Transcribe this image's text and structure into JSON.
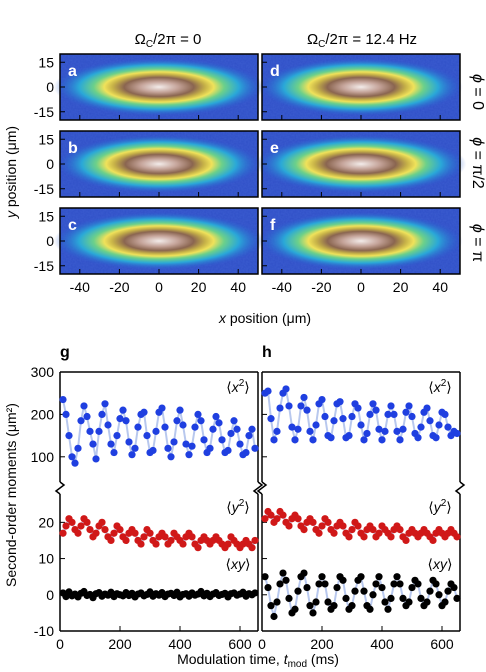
{
  "chart_data": [
    {
      "type": "heatmap",
      "columns": [
        {
          "title": "ΩC/2π = 0",
          "title_main": "Ω",
          "title_sub": "C",
          "title_rest": "/2π = 0"
        },
        {
          "title": "ΩC/2π = 12.4 Hz",
          "title_main": "Ω",
          "title_sub": "C",
          "title_rest": "/2π = 12.4 Hz"
        }
      ],
      "rows": [
        {
          "label": "ϕ = 0",
          "label_sym": "ϕ",
          "label_rest": " = 0"
        },
        {
          "label": "ϕ = π/2",
          "label_sym": "ϕ",
          "label_rest": " = π/2"
        },
        {
          "label": "ϕ = π",
          "label_sym": "ϕ",
          "label_rest": " = π"
        }
      ],
      "panel_letters": [
        "a",
        "b",
        "c",
        "d",
        "e",
        "f"
      ],
      "xlabel_var": "x",
      "xlabel_rest": " position (μm)",
      "ylabel_var": "y",
      "ylabel_rest": " position (μm)",
      "xticks": [
        -40,
        -20,
        0,
        20,
        40
      ],
      "yticks": [
        15,
        0,
        -15
      ],
      "xlim": [
        -50,
        50
      ],
      "ylim": [
        -20,
        20
      ],
      "cloud_half_width_um": [
        28,
        27,
        28,
        27,
        28,
        27
      ],
      "cloud_half_height_um": [
        8,
        8,
        8,
        8,
        8,
        8
      ]
    },
    {
      "type": "scatter",
      "panels": [
        {
          "letter": "g",
          "lines": true
        },
        {
          "letter": "h",
          "lines": true
        }
      ],
      "ylabel": "Second-order moments (μm²)",
      "xlabel_main": "Modulation time, ",
      "xlabel_var": "t",
      "xlabel_sub": "mod",
      "xlabel_unit": " (ms)",
      "xticks": [
        0,
        200,
        400,
        600
      ],
      "xlim": [
        0,
        660
      ],
      "upper_ylim": [
        50,
        300
      ],
      "upper_yticks": [
        300,
        200,
        100
      ],
      "lower_ylim": [
        -10,
        27
      ],
      "lower_yticks": [
        20,
        10,
        0,
        -10
      ],
      "series_labels": {
        "x2": {
          "text": "⟨x²⟩",
          "open": "⟨",
          "var": "x",
          "sup": "2",
          "close": "⟩"
        },
        "y2": {
          "text": "⟨y²⟩",
          "open": "⟨",
          "var": "y",
          "sup": "2",
          "close": "⟩"
        },
        "xy": {
          "text": "⟨xy⟩",
          "open": "⟨",
          "var": "xy",
          "sup": "",
          "close": "⟩"
        }
      },
      "colors": {
        "x2": "#1f3fe0",
        "y2": "#d01818",
        "xy": "#000000",
        "fit": "#b8c8ee"
      },
      "series": [
        {
          "name": "x2",
          "panel": "g",
          "x": [
            10,
            20,
            30,
            40,
            50,
            60,
            70,
            80,
            90,
            100,
            110,
            120,
            130,
            140,
            150,
            160,
            170,
            180,
            190,
            200,
            210,
            220,
            230,
            240,
            250,
            260,
            270,
            280,
            290,
            300,
            310,
            320,
            330,
            340,
            350,
            360,
            370,
            380,
            390,
            400,
            410,
            420,
            430,
            440,
            450,
            460,
            470,
            480,
            490,
            500,
            510,
            520,
            530,
            540,
            550,
            560,
            570,
            580,
            590,
            600,
            610,
            620,
            630,
            640,
            650
          ],
          "y": [
            235,
            200,
            150,
            100,
            85,
            120,
            185,
            220,
            195,
            160,
            130,
            95,
            160,
            200,
            225,
            175,
            130,
            110,
            150,
            190,
            210,
            185,
            135,
            105,
            120,
            170,
            200,
            205,
            150,
            110,
            115,
            160,
            205,
            215,
            170,
            120,
            100,
            135,
            185,
            210,
            175,
            130,
            105,
            125,
            170,
            200,
            185,
            140,
            110,
            120,
            165,
            195,
            180,
            140,
            110,
            115,
            155,
            185,
            165,
            130,
            105,
            110,
            150,
            165,
            120
          ]
        },
        {
          "name": "y2",
          "panel": "g",
          "x": [
            10,
            20,
            30,
            40,
            50,
            60,
            70,
            80,
            90,
            100,
            110,
            120,
            130,
            140,
            150,
            160,
            170,
            180,
            190,
            200,
            210,
            220,
            230,
            240,
            250,
            260,
            270,
            280,
            290,
            300,
            310,
            320,
            330,
            340,
            350,
            360,
            370,
            380,
            390,
            400,
            410,
            420,
            430,
            440,
            450,
            460,
            470,
            480,
            490,
            500,
            510,
            520,
            530,
            540,
            550,
            560,
            570,
            580,
            590,
            600,
            610,
            620,
            630,
            640,
            650
          ],
          "y": [
            17,
            19,
            21,
            20,
            18,
            17,
            19,
            21,
            20,
            18,
            16,
            17,
            19,
            20,
            18,
            16,
            15,
            17,
            19,
            18,
            16,
            15,
            17,
            18,
            17,
            15,
            14,
            16,
            18,
            17,
            15,
            14,
            16,
            17,
            16,
            14,
            15,
            17,
            16,
            15,
            14,
            16,
            17,
            16,
            14,
            13,
            15,
            16,
            15,
            14,
            15,
            16,
            15,
            14,
            13,
            14,
            16,
            15,
            14,
            13,
            14,
            15,
            14,
            13,
            15
          ]
        },
        {
          "name": "xy",
          "panel": "g",
          "x": [
            10,
            20,
            30,
            40,
            50,
            60,
            70,
            80,
            90,
            100,
            110,
            120,
            130,
            140,
            150,
            160,
            170,
            180,
            190,
            200,
            210,
            220,
            230,
            240,
            250,
            260,
            270,
            280,
            290,
            300,
            310,
            320,
            330,
            340,
            350,
            360,
            370,
            380,
            390,
            400,
            410,
            420,
            430,
            440,
            450,
            460,
            470,
            480,
            490,
            500,
            510,
            520,
            530,
            540,
            550,
            560,
            570,
            580,
            590,
            600,
            610,
            620,
            630,
            640,
            650
          ],
          "y": [
            0.5,
            -0.5,
            0.8,
            -0.3,
            0.2,
            -0.6,
            0.4,
            0.9,
            -0.2,
            0.1,
            -0.8,
            0.3,
            0.6,
            -0.4,
            0.2,
            -0.1,
            0.7,
            -0.5,
            0.3,
            0.0,
            -0.3,
            0.6,
            -0.2,
            0.4,
            -0.6,
            0.2,
            0.5,
            -0.3,
            0.1,
            0.8,
            -0.4,
            0.3,
            -0.1,
            0.6,
            -0.5,
            0.2,
            0.4,
            -0.2,
            0.7,
            -0.6,
            0.1,
            0.3,
            -0.4,
            0.5,
            -0.1,
            0.2,
            0.9,
            -0.3,
            0.4,
            -0.5,
            0.2,
            0.6,
            -0.2,
            0.1,
            0.4,
            -0.6,
            0.3,
            0.5,
            -0.1,
            0.2,
            0.7,
            -0.4,
            0.3,
            0.0,
            0.5
          ]
        },
        {
          "name": "x2",
          "panel": "h",
          "x": [
            10,
            20,
            30,
            40,
            50,
            60,
            70,
            80,
            90,
            100,
            110,
            120,
            130,
            140,
            150,
            160,
            170,
            180,
            190,
            200,
            210,
            220,
            230,
            240,
            250,
            260,
            270,
            280,
            290,
            300,
            310,
            320,
            330,
            340,
            350,
            360,
            370,
            380,
            390,
            400,
            410,
            420,
            430,
            440,
            450,
            460,
            470,
            480,
            490,
            500,
            510,
            520,
            530,
            540,
            550,
            560,
            570,
            580,
            590,
            600,
            610,
            620,
            630,
            640,
            650
          ],
          "y": [
            250,
            255,
            190,
            140,
            160,
            215,
            250,
            260,
            220,
            170,
            140,
            165,
            220,
            240,
            210,
            160,
            140,
            175,
            225,
            235,
            195,
            150,
            145,
            185,
            225,
            230,
            190,
            145,
            150,
            195,
            225,
            215,
            175,
            140,
            155,
            200,
            225,
            210,
            165,
            140,
            160,
            200,
            220,
            200,
            160,
            140,
            165,
            205,
            220,
            195,
            155,
            145,
            170,
            205,
            215,
            185,
            150,
            145,
            175,
            205,
            200,
            170,
            150,
            160,
            155
          ]
        },
        {
          "name": "y2",
          "panel": "h",
          "x": [
            10,
            20,
            30,
            40,
            50,
            60,
            70,
            80,
            90,
            100,
            110,
            120,
            130,
            140,
            150,
            160,
            170,
            180,
            190,
            200,
            210,
            220,
            230,
            240,
            250,
            260,
            270,
            280,
            290,
            300,
            310,
            320,
            330,
            340,
            350,
            360,
            370,
            380,
            390,
            400,
            410,
            420,
            430,
            440,
            450,
            460,
            470,
            480,
            490,
            500,
            510,
            520,
            530,
            540,
            550,
            560,
            570,
            580,
            590,
            600,
            610,
            620,
            630,
            640,
            650
          ],
          "y": [
            21,
            23,
            22,
            20,
            21,
            23,
            22,
            20,
            19,
            21,
            22,
            21,
            19,
            18,
            20,
            21,
            20,
            18,
            17,
            19,
            21,
            20,
            18,
            17,
            19,
            20,
            19,
            17,
            16,
            18,
            20,
            19,
            17,
            16,
            18,
            19,
            18,
            16,
            17,
            19,
            18,
            17,
            16,
            18,
            19,
            18,
            16,
            15,
            17,
            18,
            17,
            16,
            17,
            18,
            17,
            16,
            15,
            17,
            18,
            17,
            16,
            17,
            18,
            17,
            16
          ]
        },
        {
          "name": "xy",
          "panel": "h",
          "x": [
            10,
            20,
            30,
            40,
            50,
            60,
            70,
            80,
            90,
            100,
            110,
            120,
            130,
            140,
            150,
            160,
            170,
            180,
            190,
            200,
            210,
            220,
            230,
            240,
            250,
            260,
            270,
            280,
            290,
            300,
            310,
            320,
            330,
            340,
            350,
            360,
            370,
            380,
            390,
            400,
            410,
            420,
            430,
            440,
            450,
            460,
            470,
            480,
            490,
            500,
            510,
            520,
            530,
            540,
            550,
            560,
            570,
            580,
            590,
            600,
            610,
            620,
            630,
            640,
            650
          ],
          "y": [
            5,
            2,
            -3,
            -6,
            -2,
            3,
            6,
            4,
            -1,
            -5,
            -4,
            1,
            5,
            6,
            2,
            -3,
            -5,
            -2,
            3,
            5,
            3,
            -2,
            -4,
            -3,
            2,
            5,
            4,
            -1,
            -4,
            -3,
            1,
            4,
            5,
            1,
            -3,
            -4,
            0,
            3,
            5,
            2,
            -2,
            -4,
            -1,
            3,
            5,
            3,
            -1,
            -3,
            -2,
            2,
            4,
            3,
            -1,
            -3,
            -2,
            1,
            4,
            3,
            0,
            -3,
            -2,
            1,
            3,
            2,
            -1
          ]
        }
      ]
    }
  ]
}
